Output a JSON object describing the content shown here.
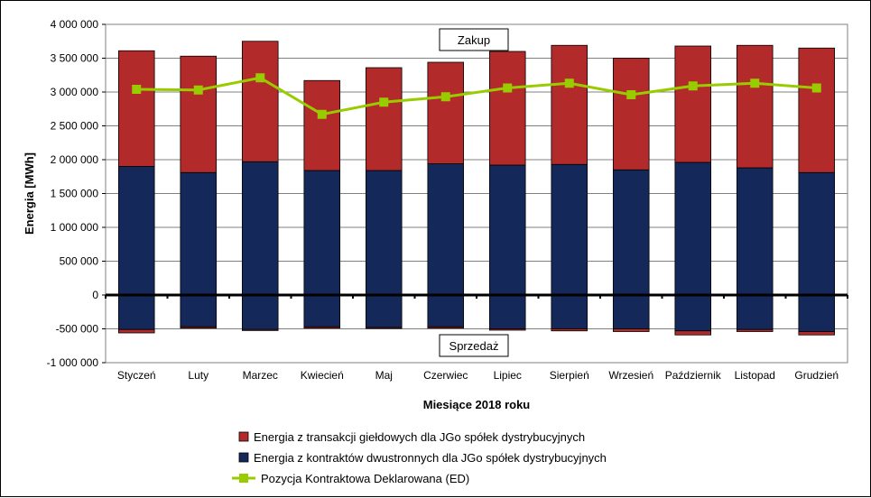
{
  "chart_data": {
    "type": "bar",
    "categories": [
      "Styczeń",
      "Luty",
      "Marzec",
      "Kwiecień",
      "Maj",
      "Czerwiec",
      "Lipiec",
      "Sierpień",
      "Wrzesień",
      "Październik",
      "Listopad",
      "Grudzień"
    ],
    "series": [
      {
        "name": "Energia z transakcji giełdowych dla JGo spółek dystrybucyjnych",
        "buy": [
          1710000,
          1720000,
          1780000,
          1330000,
          1520000,
          1500000,
          1680000,
          1760000,
          1650000,
          1720000,
          1810000,
          1840000
        ],
        "sell": [
          -50000,
          -20000,
          -15000,
          -20000,
          -15000,
          -20000,
          -20000,
          -30000,
          -40000,
          -60000,
          -30000,
          -50000
        ],
        "color": "#b22a2a"
      },
      {
        "name": "Energia z kontraktów dwustronnych dla JGo spółek dystrybucyjnych",
        "buy": [
          1900000,
          1810000,
          1970000,
          1840000,
          1840000,
          1940000,
          1920000,
          1930000,
          1850000,
          1960000,
          1880000,
          1810000
        ],
        "sell": [
          -510000,
          -470000,
          -510000,
          -470000,
          -480000,
          -470000,
          -500000,
          -500000,
          -500000,
          -530000,
          -510000,
          -540000
        ],
        "color": "#14285a"
      },
      {
        "name": "Pozycja Kontraktowa Deklarowana (ED)",
        "type": "line",
        "values": [
          3040000,
          3030000,
          3210000,
          2670000,
          2850000,
          2930000,
          3060000,
          3130000,
          2960000,
          3090000,
          3130000,
          3060000
        ],
        "color": "#99cc00"
      }
    ],
    "xlabel": "Miesiące 2018  roku",
    "ylabel": "Energia  [MWh]",
    "ylim": [
      -1000000,
      4000000
    ],
    "yticks": [
      4000000,
      3500000,
      3000000,
      2500000,
      2000000,
      1500000,
      1000000,
      500000,
      0,
      -500000,
      -1000000
    ],
    "ytick_labels": [
      "4 000 000",
      "3 500 000",
      "3 000 000",
      "2 500 000",
      "2 000 000",
      "1 500 000",
      "1 000 000",
      "500 000",
      "0",
      "-500 000",
      "-1 000 000"
    ],
    "annotations": [
      "Zakup",
      "Sprzedaż"
    ],
    "grid": true,
    "legend_position": "bottom"
  }
}
